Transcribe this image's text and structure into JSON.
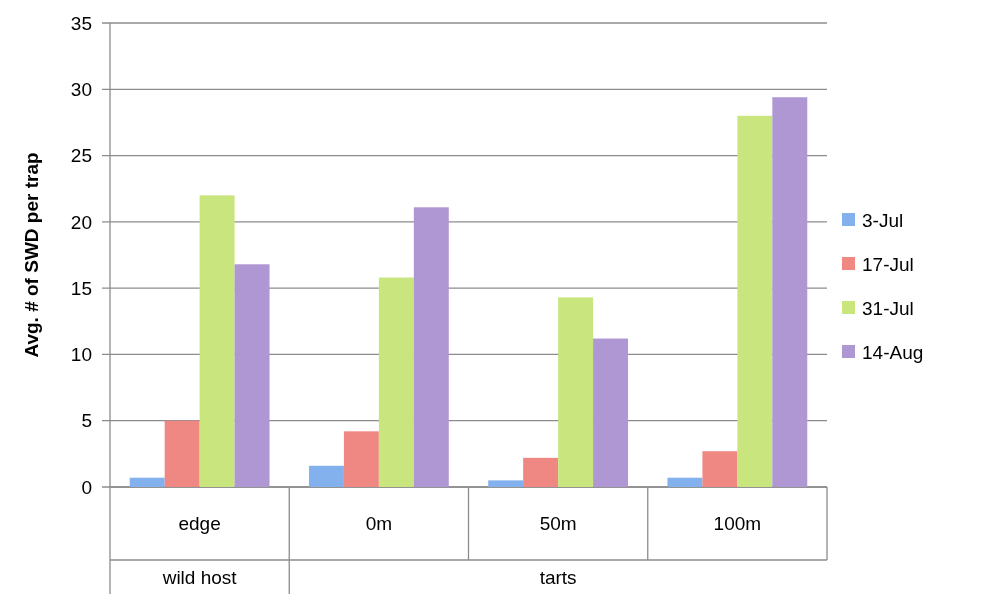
{
  "chart_data": {
    "type": "bar",
    "ylabel": "Avg. # of SWD per trap",
    "categories": [
      "edge",
      "0m",
      "50m",
      "100m"
    ],
    "series": [
      {
        "name": "3-Jul",
        "color": "#82b1ee",
        "values": [
          0.7,
          1.6,
          0.5,
          0.7
        ]
      },
      {
        "name": "17-Jul",
        "color": "#ef8783",
        "values": [
          5.0,
          4.2,
          2.2,
          2.7
        ]
      },
      {
        "name": "31-Jul",
        "color": "#c8e57e",
        "values": [
          22.0,
          15.8,
          14.3,
          28.0
        ]
      },
      {
        "name": "14-Aug",
        "color": "#ae97d3",
        "values": [
          16.8,
          21.1,
          11.2,
          29.4
        ]
      }
    ],
    "ylim": [
      0,
      35
    ],
    "yticks": [
      0,
      5,
      10,
      15,
      20,
      25,
      30,
      35
    ],
    "grid": "y",
    "legend": "right",
    "annotations": [
      "wild host",
      "tarts"
    ]
  }
}
